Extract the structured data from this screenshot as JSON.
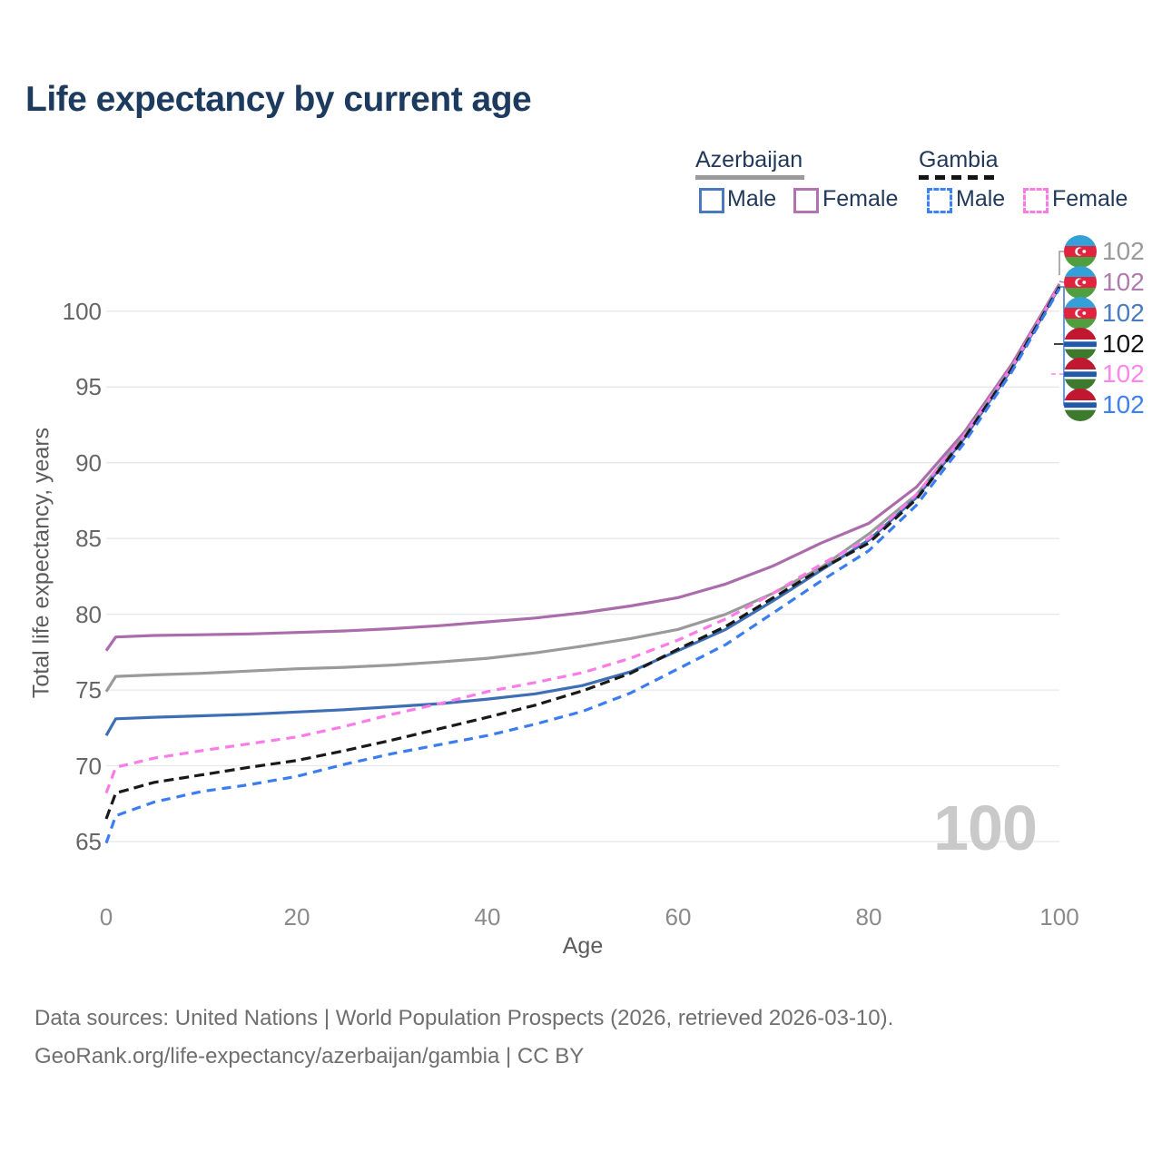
{
  "title": "Life expectancy by current age",
  "legend": {
    "groups": [
      {
        "label": "Azerbaijan",
        "line_style": "solid",
        "rule_color": "#9a9a9a",
        "items": [
          {
            "label": "Male",
            "color": "#4b79bd",
            "dashed": false
          },
          {
            "label": "Female",
            "color": "#b273b2",
            "dashed": false
          }
        ]
      },
      {
        "label": "Gambia",
        "line_style": "dashed",
        "rule_color": "#141414",
        "items": [
          {
            "label": "Male",
            "color": "#3b82f6",
            "dashed": true
          },
          {
            "label": "Female",
            "color": "#fb7be5",
            "dashed": true
          }
        ]
      }
    ]
  },
  "y_axis": {
    "label": "Total life expectancy, years",
    "ticks": [
      65,
      70,
      75,
      80,
      85,
      90,
      95,
      100
    ]
  },
  "x_axis": {
    "label": "Age",
    "ticks": [
      0,
      20,
      40,
      60,
      80,
      100
    ]
  },
  "watermark_age": "100",
  "end_labels": [
    {
      "country": "Azerbaijan",
      "value": "102",
      "color": "#9a9a9a"
    },
    {
      "country": "Azerbaijan",
      "value": "102",
      "color": "#b07ab0"
    },
    {
      "country": "Azerbaijan",
      "value": "102",
      "color": "#4a7ac0"
    },
    {
      "country": "Gambia",
      "value": "102",
      "color": "#141414"
    },
    {
      "country": "Gambia",
      "value": "102",
      "color": "#ff85ec"
    },
    {
      "country": "Gambia",
      "value": "102",
      "color": "#3f80f0"
    }
  ],
  "footer": {
    "line1": "Data sources: United Nations | World Population Prospects (2026, retrieved 2026-03-10).",
    "line2": "GeoRank.org/life-expectancy/azerbaijan/gambia | CC BY"
  },
  "chart_data": {
    "type": "line",
    "title": "Life expectancy by current age",
    "xlabel": "Age",
    "ylabel": "Total life expectancy, years",
    "xlim": [
      0,
      100
    ],
    "ylim": [
      63.5,
      103
    ],
    "grid": "horizontal",
    "legend_position": "top-right",
    "x": [
      0,
      1,
      5,
      10,
      15,
      20,
      25,
      30,
      35,
      40,
      45,
      50,
      55,
      60,
      65,
      70,
      75,
      80,
      85,
      90,
      95,
      100
    ],
    "series": [
      {
        "name": "Azerbaijan Female",
        "country": "Azerbaijan",
        "sex": "Female",
        "color": "#ab6cac",
        "dash": null,
        "values": [
          77.6,
          78.5,
          78.6,
          78.65,
          78.7,
          78.8,
          78.9,
          79.05,
          79.25,
          79.5,
          79.75,
          80.1,
          80.55,
          81.1,
          82.0,
          83.2,
          84.7,
          86.0,
          88.4,
          92.0,
          96.5,
          101.8
        ]
      },
      {
        "name": "Azerbaijan Both sexes",
        "country": "Azerbaijan",
        "sex": "Both",
        "color": "#9a9a9a",
        "dash": null,
        "values": [
          74.9,
          75.9,
          76.0,
          76.1,
          76.25,
          76.4,
          76.5,
          76.65,
          76.85,
          77.1,
          77.45,
          77.9,
          78.4,
          79.0,
          80.0,
          81.4,
          83.1,
          85.3,
          87.9,
          91.8,
          96.3,
          101.7
        ]
      },
      {
        "name": "Azerbaijan Male",
        "country": "Azerbaijan",
        "sex": "Male",
        "color": "#3e6eb4",
        "dash": null,
        "values": [
          72.0,
          73.1,
          73.2,
          73.3,
          73.4,
          73.55,
          73.7,
          73.9,
          74.1,
          74.4,
          74.75,
          75.3,
          76.2,
          77.6,
          79.0,
          80.9,
          82.9,
          84.9,
          87.7,
          91.6,
          96.2,
          101.6
        ]
      },
      {
        "name": "Gambia Female",
        "country": "Gambia",
        "sex": "Female",
        "color": "#fb7ce8",
        "dash": "10 7",
        "values": [
          68.2,
          69.9,
          70.5,
          71.0,
          71.45,
          71.9,
          72.6,
          73.4,
          74.1,
          74.9,
          75.5,
          76.15,
          77.1,
          78.3,
          79.7,
          81.4,
          83.3,
          85.0,
          87.9,
          91.8,
          96.3,
          101.7
        ]
      },
      {
        "name": "Gambia Both sexes",
        "country": "Gambia",
        "sex": "Both",
        "color": "#191919",
        "dash": "11 6",
        "values": [
          66.5,
          68.2,
          68.9,
          69.4,
          69.9,
          70.35,
          71.0,
          71.7,
          72.45,
          73.2,
          74.0,
          74.95,
          76.1,
          77.7,
          79.2,
          81.1,
          83.0,
          84.7,
          87.6,
          91.6,
          96.2,
          101.6
        ]
      },
      {
        "name": "Gambia Male",
        "country": "Gambia",
        "sex": "Male",
        "color": "#3b7df0",
        "dash": "10 7",
        "values": [
          64.9,
          66.7,
          67.6,
          68.3,
          68.75,
          69.3,
          70.1,
          70.8,
          71.4,
          72.0,
          72.75,
          73.6,
          74.8,
          76.4,
          78.0,
          80.1,
          82.2,
          84.2,
          87.2,
          91.3,
          96.0,
          101.5
        ]
      }
    ]
  }
}
